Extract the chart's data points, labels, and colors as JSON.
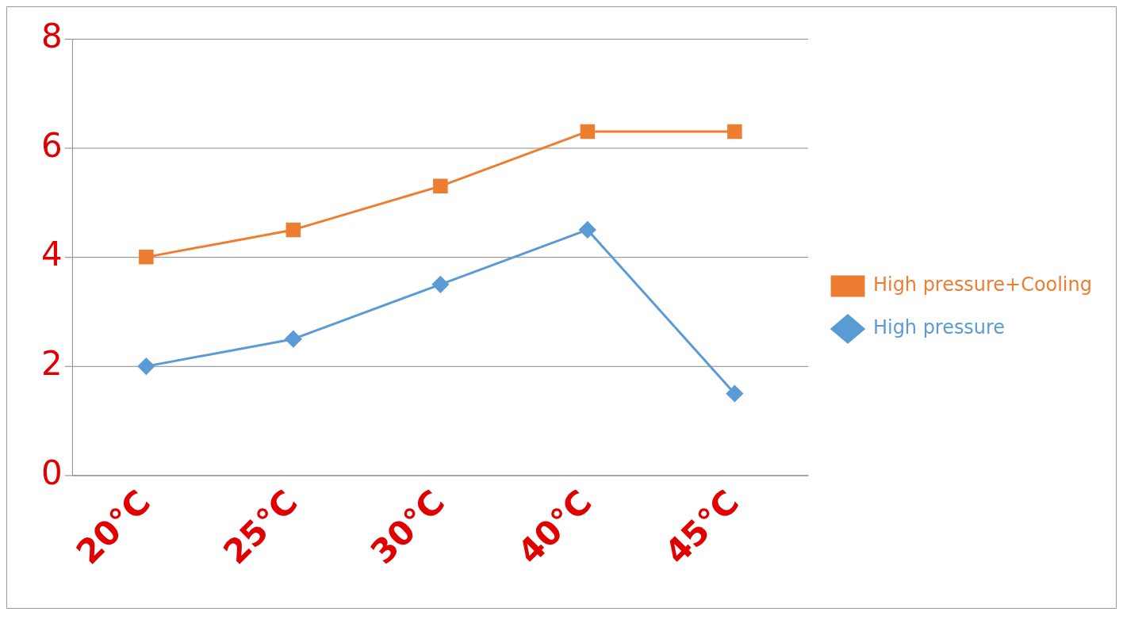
{
  "chart_data": {
    "type": "line",
    "categories": [
      "20°C",
      "25°C",
      "30°C",
      "40°C",
      "45°C"
    ],
    "series": [
      {
        "name": "High pressure+Cooling",
        "color": "#ed7d31",
        "marker": "square",
        "values": [
          4,
          4.5,
          5.3,
          6.3,
          6.3
        ]
      },
      {
        "name": "High pressure",
        "color": "#5b9bd5",
        "marker": "diamond",
        "values": [
          2,
          2.5,
          3.5,
          4.5,
          1.5
        ]
      }
    ],
    "ylim": [
      0,
      8
    ],
    "yticks": [
      0,
      2,
      4,
      6,
      8
    ],
    "grid": "y",
    "legend": "right"
  }
}
